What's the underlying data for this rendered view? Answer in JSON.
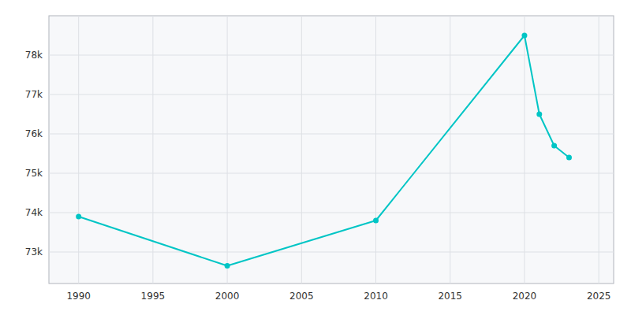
{
  "chart_data": {
    "type": "line",
    "x": [
      1990,
      2000,
      2010,
      2020,
      2021,
      2022,
      2023
    ],
    "values": [
      73900,
      72650,
      73800,
      78500,
      76500,
      75700,
      75400
    ],
    "color": "#00C5C5",
    "marker": "circle",
    "xlim": [
      1988,
      2026
    ],
    "ylim": [
      72200,
      79000
    ],
    "xticks": [
      1990,
      1995,
      2000,
      2005,
      2010,
      2015,
      2020,
      2025
    ],
    "yticks": [
      {
        "value": 73000,
        "label": "73k"
      },
      {
        "value": 74000,
        "label": "74k"
      },
      {
        "value": 75000,
        "label": "75k"
      },
      {
        "value": 76000,
        "label": "76k"
      },
      {
        "value": 77000,
        "label": "77k"
      },
      {
        "value": 78000,
        "label": "78k"
      }
    ],
    "grid": true
  }
}
